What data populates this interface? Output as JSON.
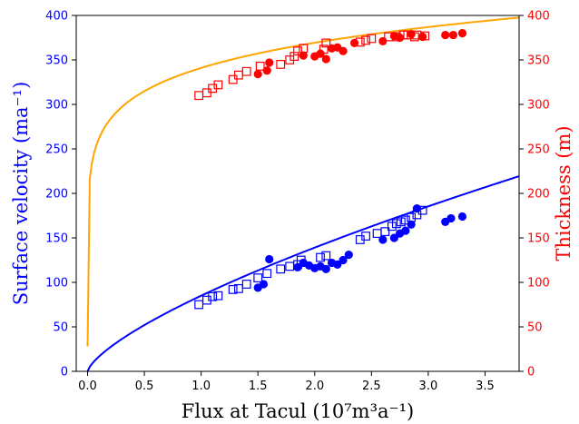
{
  "chart_data": {
    "type": "scatter",
    "xlabel": "Flux at Tacul (10⁷m³a⁻¹)",
    "ylabel_left": "Surface velocity (ma⁻¹)",
    "ylabel_right": "Thickness (m)",
    "xlim": [
      -0.1,
      3.8
    ],
    "ylim_left": [
      0,
      400
    ],
    "ylim_right": [
      0,
      400
    ],
    "x_ticks": [
      "0.0",
      "0.5",
      "1.0",
      "1.5",
      "2.0",
      "2.5",
      "3.0",
      "3.5"
    ],
    "y_ticks_left": [
      "0",
      "50",
      "100",
      "150",
      "200",
      "250",
      "300",
      "350",
      "400"
    ],
    "y_ticks_right": [
      "0",
      "50",
      "100",
      "150",
      "200",
      "250",
      "300",
      "350",
      "400"
    ],
    "colors": {
      "velocity": "#0000ff",
      "thickness": "#ff0000",
      "thickness_fit": "#ffa500",
      "axes": "#000000"
    },
    "series": [
      {
        "axis": "left",
        "marker": "circle-filled",
        "color": "#0000ff",
        "x": [
          1.5,
          1.55,
          1.6,
          1.85,
          1.9,
          1.95,
          2.0,
          2.05,
          2.1,
          2.15,
          2.2,
          2.25,
          2.3,
          2.6,
          2.7,
          2.75,
          2.8,
          2.85,
          2.9,
          3.15,
          3.2,
          3.3
        ],
        "y": [
          94,
          98,
          126,
          117,
          122,
          119,
          116,
          118,
          115,
          122,
          120,
          125,
          131,
          148,
          150,
          155,
          158,
          165,
          183,
          168,
          172,
          174
        ]
      },
      {
        "axis": "left",
        "marker": "square-open",
        "color": "#0000ff",
        "x": [
          0.98,
          1.05,
          1.1,
          1.15,
          1.28,
          1.33,
          1.4,
          1.5,
          1.58,
          1.7,
          1.78,
          1.85,
          1.88,
          2.05,
          2.1,
          2.4,
          2.45,
          2.55,
          2.62,
          2.68,
          2.72,
          2.76,
          2.8,
          2.85,
          2.9,
          2.95
        ],
        "y": [
          75,
          80,
          84,
          85,
          92,
          93,
          98,
          105,
          110,
          115,
          118,
          120,
          125,
          128,
          130,
          148,
          152,
          155,
          157,
          163,
          166,
          168,
          170,
          173,
          176,
          181
        ]
      },
      {
        "axis": "right",
        "marker": "circle-filled",
        "color": "#ff0000",
        "x": [
          1.5,
          1.58,
          1.6,
          1.9,
          2.0,
          2.05,
          2.1,
          2.15,
          2.2,
          2.25,
          2.35,
          2.6,
          2.7,
          2.75,
          2.85,
          2.95,
          3.15,
          3.22,
          3.3
        ],
        "y": [
          334,
          338,
          347,
          355,
          354,
          357,
          351,
          363,
          364,
          360,
          369,
          371,
          377,
          375,
          379,
          376,
          378,
          378,
          380
        ]
      },
      {
        "axis": "right",
        "marker": "square-open",
        "color": "#ff0000",
        "x": [
          0.98,
          1.05,
          1.1,
          1.15,
          1.28,
          1.33,
          1.4,
          1.52,
          1.7,
          1.78,
          1.82,
          1.85,
          1.9,
          2.08,
          2.1,
          2.4,
          2.45,
          2.5,
          2.65,
          2.72,
          2.78,
          2.82,
          2.88,
          2.9,
          2.97
        ],
        "y": [
          310,
          313,
          318,
          322,
          328,
          333,
          337,
          343,
          345,
          350,
          354,
          360,
          363,
          362,
          369,
          370,
          372,
          374,
          376,
          376,
          378,
          378,
          376,
          378,
          377
        ]
      }
    ],
    "fits": [
      {
        "axis": "left",
        "color": "#0000ff",
        "kind": "power",
        "a": 85,
        "b": 0.71,
        "offset": 0,
        "x_range": [
          0.0,
          3.8
        ]
      },
      {
        "axis": "right",
        "color": "#ffa500",
        "kind": "power",
        "a": 341,
        "b": 0.115,
        "offset": 0,
        "x_range": [
          0.0,
          3.8
        ],
        "start_value": 28
      }
    ]
  }
}
